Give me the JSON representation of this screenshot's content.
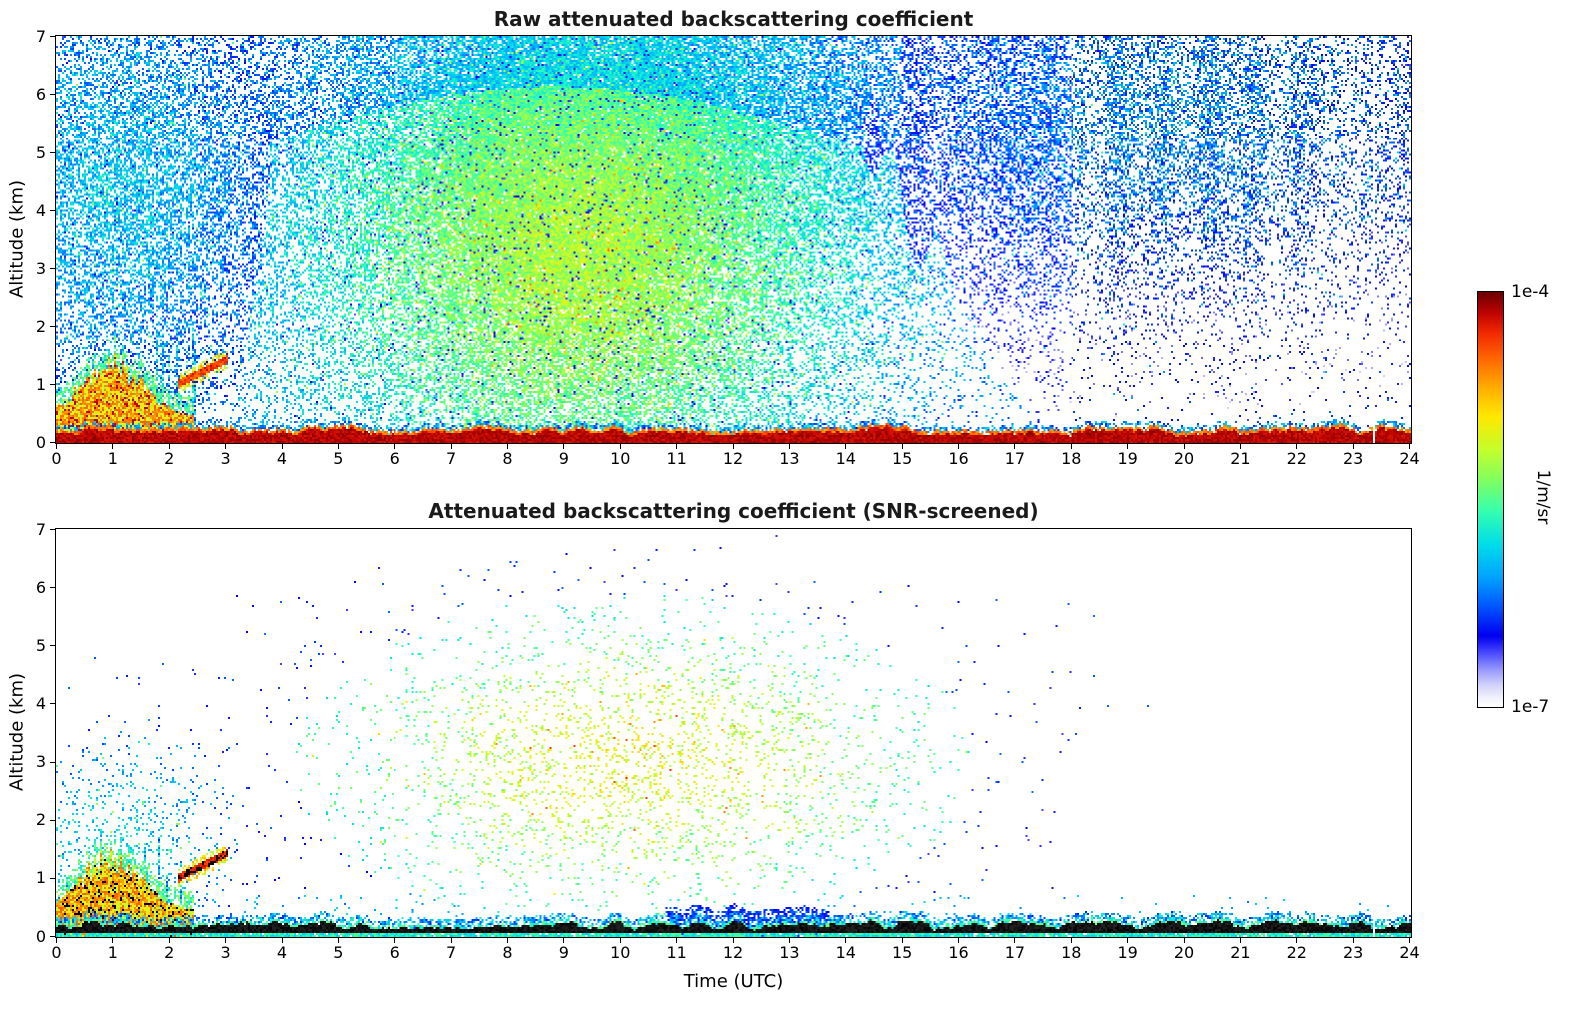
{
  "figure": {
    "background": "#ffffff",
    "colorbar": {
      "orientation": "vertical",
      "scale": "log",
      "min": 1e-07,
      "max": 0.0001,
      "top_label": "1e-4",
      "bottom_label": "1e-7",
      "unit_label": "1/m/sr",
      "colormap": "jet-with-white-low"
    }
  },
  "chart_data": [
    {
      "type": "heatmap",
      "panel": "raw",
      "title": "Raw attenuated backscattering coefficient",
      "xlabel": "",
      "ylabel": "Altitude (km)",
      "xlim": [
        0,
        24
      ],
      "ylim": [
        0,
        7
      ],
      "xticks": [
        0,
        1,
        2,
        3,
        4,
        5,
        6,
        7,
        8,
        9,
        10,
        11,
        12,
        13,
        14,
        15,
        16,
        17,
        18,
        19,
        20,
        21,
        22,
        23,
        24
      ],
      "yticks": [
        0,
        1,
        2,
        3,
        4,
        5,
        6,
        7
      ],
      "color_scale": {
        "type": "log",
        "min": 1e-07,
        "max": 0.0001,
        "unit": "1/m/sr"
      },
      "features": [
        {
          "name": "surface-return",
          "kind": "surface",
          "base_alt_km": 0.2,
          "variation_km": 0.07,
          "value": 9e-05,
          "fringe_value": 3e-05,
          "speckle_value": 8e-07
        },
        {
          "name": "central-noise-cloud",
          "kind": "gaussian-speckle",
          "t_center": 9.3,
          "t_sigma": 4.3,
          "alt_center": 3.2,
          "alt_sigma": 4.0,
          "peak_density": 0.85,
          "value_peak": 6e-06,
          "value_edge": 5e-07,
          "dark_dots": true
        },
        {
          "name": "upper-noise",
          "kind": "gaussian-speckle",
          "t_center": 9.5,
          "t_sigma": 5.2,
          "alt_center": 6.2,
          "alt_sigma": 2.6,
          "peak_density": 0.5,
          "value_peak": 1.5e-06,
          "value_edge": 3e-07,
          "dark_dots": true
        },
        {
          "name": "left-noise",
          "kind": "gaussian-speckle",
          "t_center": 1.0,
          "t_sigma": 2.4,
          "alt_center": 4.3,
          "alt_sigma": 3.2,
          "peak_density": 0.55,
          "value_peak": 1.2e-06,
          "value_edge": 3e-07,
          "dark_dots": true
        },
        {
          "name": "right-noise",
          "kind": "gaussian-speckle",
          "t_center": 19.5,
          "t_sigma": 5.2,
          "alt_center": 5.6,
          "alt_sigma": 2.8,
          "peak_density": 0.42,
          "value_peak": 7e-07,
          "value_edge": 2e-07,
          "striped": true,
          "dark_dots": true
        },
        {
          "name": "ambient-speckle",
          "kind": "uniform-speckle",
          "density": 0.022,
          "t_range": [
            0,
            24
          ],
          "alt_range": [
            0.35,
            7
          ],
          "value": 4e-07
        },
        {
          "name": "boundary-layer-cloud",
          "kind": "blob",
          "t_range": [
            0,
            2.45
          ],
          "t_peak": 1.0,
          "t_sigma": 0.75,
          "alt_base": 0.45,
          "alt_peak": 1.35,
          "value": 2.5e-05
        },
        {
          "name": "vertical-spikes",
          "kind": "spikes",
          "t_range": [
            1.45,
            2.5
          ],
          "max_alt_km": 2.1,
          "density": 0.33,
          "value": 9e-07
        },
        {
          "name": "slanted-plume",
          "kind": "streak",
          "t_start": 2.15,
          "t_end": 3.05,
          "alt_start": 1.0,
          "alt_end": 1.45,
          "half_width_km": 0.07,
          "value": 7e-05
        },
        {
          "name": "data-gap",
          "kind": "gap",
          "t": 23.35,
          "half_width": 0.03
        }
      ]
    },
    {
      "type": "heatmap",
      "panel": "snr-screened",
      "title": "Attenuated backscattering coefficient (SNR-screened)",
      "xlabel": "Time (UTC)",
      "ylabel": "Altitude (km)",
      "xlim": [
        0,
        24
      ],
      "ylim": [
        0,
        7
      ],
      "xticks": [
        0,
        1,
        2,
        3,
        4,
        5,
        6,
        7,
        8,
        9,
        10,
        11,
        12,
        13,
        14,
        15,
        16,
        17,
        18,
        19,
        20,
        21,
        22,
        23,
        24
      ],
      "yticks": [
        0,
        1,
        2,
        3,
        4,
        5,
        6,
        7
      ],
      "color_scale": {
        "type": "log",
        "min": 1e-07,
        "max": 0.0001,
        "unit": "1/m/sr"
      },
      "features": [
        {
          "name": "surface-return-screened",
          "kind": "surface-dark",
          "base_alt_km": 0.2,
          "variation_km": 0.08,
          "core_value": 0.0001,
          "fringe_value": 1e-06,
          "underline_value": 2e-06,
          "blue_patch": {
            "t_range": [
              10.8,
              13.7
            ],
            "value": 3e-07
          }
        },
        {
          "name": "residual-noise-cloud",
          "kind": "gaussian-speckle",
          "t_center": 10.2,
          "t_sigma": 4.0,
          "alt_center": 3.0,
          "alt_sigma": 1.9,
          "peak_density": 0.15,
          "value_peak": 1e-05,
          "value_edge": 1.2e-06
        },
        {
          "name": "left-sparse-speckle",
          "kind": "gaussian-speckle",
          "t_center": 1.1,
          "t_sigma": 1.5,
          "alt_center": 1.6,
          "alt_sigma": 1.5,
          "peak_density": 0.15,
          "value_peak": 1.5e-06,
          "value_edge": 4e-07
        },
        {
          "name": "near-surface-dots",
          "kind": "uniform-speckle",
          "density": 0.012,
          "t_range": [
            2.5,
            24
          ],
          "alt_range": [
            0.32,
            0.75
          ],
          "value": 1e-06
        },
        {
          "name": "boundary-layer-cloud",
          "kind": "blob",
          "t_range": [
            0,
            2.45
          ],
          "t_peak": 1.0,
          "t_sigma": 0.75,
          "alt_base": 0.45,
          "alt_peak": 1.35,
          "value": 2.5e-05
        },
        {
          "name": "vertical-spikes",
          "kind": "spikes",
          "t_range": [
            1.5,
            2.4
          ],
          "max_alt_km": 1.9,
          "density": 0.22,
          "value": 8e-07
        },
        {
          "name": "slanted-plume",
          "kind": "streak",
          "t_start": 2.15,
          "t_end": 3.05,
          "alt_start": 1.0,
          "alt_end": 1.45,
          "half_width_km": 0.07,
          "value": 0.0001,
          "dark": true
        },
        {
          "name": "data-gap",
          "kind": "gap",
          "t": 23.35,
          "half_width": 0.03
        }
      ]
    }
  ]
}
